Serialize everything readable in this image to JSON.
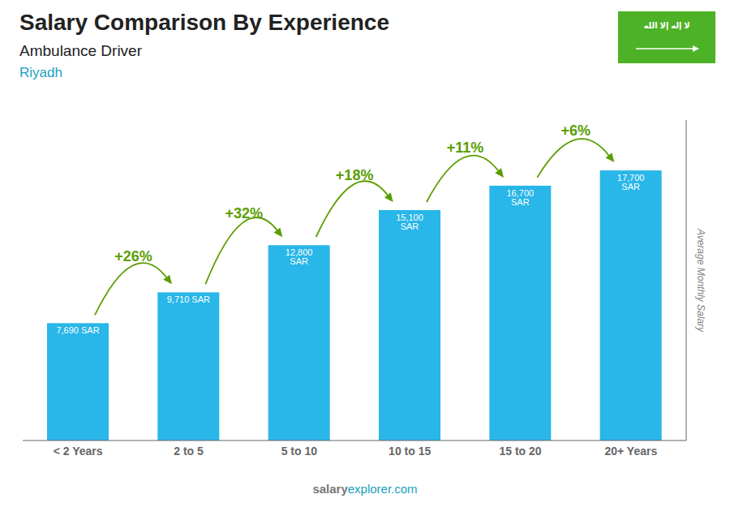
{
  "chart_data": {
    "type": "bar",
    "title": "Salary Comparison By Experience",
    "subtitle": "Ambulance Driver",
    "categories": [
      "< 2 Years",
      "2 to 5",
      "5 to 10",
      "10 to 15",
      "15 to 20",
      "20+ Years"
    ],
    "values": [
      7690,
      9710,
      12800,
      15100,
      16700,
      17700
    ],
    "value_labels": [
      "7,690 SAR",
      "9,710 SAR",
      "12,800 SAR",
      "15,100 SAR",
      "16,700 SAR",
      "17,700 SAR"
    ],
    "data_labels": true,
    "color": "#29b6e8",
    "ylabel": "Average Monthly Salary",
    "ylim": [
      0,
      21000
    ],
    "tick_labels": "x",
    "grid": false,
    "change_labels": [
      "+26%",
      "+32%",
      "+18%",
      "+11%",
      "+6%"
    ],
    "annotations": [
      "Riyadh",
      "salary",
      "explorer.com",
      "لا إله إلا الله"
    ]
  }
}
